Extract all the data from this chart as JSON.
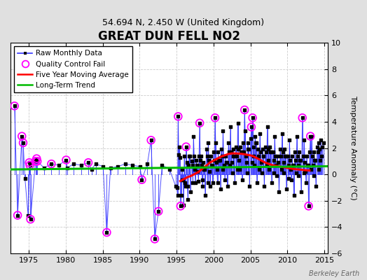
{
  "title": "GREAT DUN FELL NO2",
  "subtitle": "54.694 N, 2.450 W (United Kingdom)",
  "ylabel": "Temperature Anomaly (°C)",
  "attribution": "Berkeley Earth",
  "xlim": [
    1972.5,
    2015.5
  ],
  "ylim": [
    -6,
    10
  ],
  "yticks": [
    -6,
    -4,
    -2,
    0,
    2,
    4,
    6,
    8,
    10
  ],
  "xticks": [
    1975,
    1980,
    1985,
    1990,
    1995,
    2000,
    2005,
    2010,
    2015
  ],
  "background_color": "#e0e0e0",
  "plot_bg_color": "#ffffff",
  "raw_color": "#3333ff",
  "qc_color": "#ff00ff",
  "moving_avg_color": "#ff0000",
  "trend_color": "#00bb00",
  "raw_monthly": [
    [
      1973.04,
      5.2
    ],
    [
      1973.46,
      -3.1
    ],
    [
      1974.04,
      2.9
    ],
    [
      1974.21,
      2.4
    ],
    [
      1974.46,
      -0.3
    ],
    [
      1974.88,
      -3.1
    ],
    [
      1975.04,
      0.9
    ],
    [
      1975.13,
      0.7
    ],
    [
      1975.21,
      -3.4
    ],
    [
      1975.88,
      1.0
    ],
    [
      1976.04,
      1.2
    ],
    [
      1976.13,
      1.0
    ],
    [
      1977.04,
      0.5
    ],
    [
      1978.04,
      0.8
    ],
    [
      1979.04,
      0.7
    ],
    [
      1980.04,
      1.1
    ],
    [
      1980.21,
      0.5
    ],
    [
      1981.04,
      0.8
    ],
    [
      1982.04,
      0.7
    ],
    [
      1983.04,
      0.9
    ],
    [
      1983.46,
      0.4
    ],
    [
      1984.04,
      0.8
    ],
    [
      1985.04,
      0.6
    ],
    [
      1985.54,
      -4.4
    ],
    [
      1986.04,
      0.5
    ],
    [
      1987.04,
      0.6
    ],
    [
      1988.04,
      0.8
    ],
    [
      1989.04,
      0.7
    ],
    [
      1990.04,
      0.6
    ],
    [
      1990.29,
      -0.4
    ],
    [
      1991.04,
      0.8
    ],
    [
      1991.54,
      2.6
    ],
    [
      1992.04,
      -4.9
    ],
    [
      1992.54,
      -2.8
    ],
    [
      1993.04,
      0.7
    ],
    [
      1994.04,
      0.4
    ],
    [
      1994.88,
      -0.9
    ],
    [
      1995.04,
      -1.0
    ],
    [
      1995.13,
      -1.6
    ],
    [
      1995.21,
      4.4
    ],
    [
      1995.29,
      1.5
    ],
    [
      1995.38,
      2.1
    ],
    [
      1995.46,
      1.3
    ],
    [
      1995.54,
      -2.4
    ],
    [
      1995.63,
      -1.6
    ],
    [
      1995.71,
      0.4
    ],
    [
      1995.79,
      -0.4
    ],
    [
      1995.88,
      -0.4
    ],
    [
      1995.96,
      -2.3
    ],
    [
      1996.04,
      1.4
    ],
    [
      1996.13,
      -0.6
    ],
    [
      1996.21,
      -0.9
    ],
    [
      1996.29,
      2.1
    ],
    [
      1996.38,
      0.9
    ],
    [
      1996.46,
      -0.9
    ],
    [
      1996.54,
      -1.9
    ],
    [
      1996.63,
      0.7
    ],
    [
      1996.71,
      1.4
    ],
    [
      1996.79,
      1.4
    ],
    [
      1996.88,
      -1.3
    ],
    [
      1997.04,
      1.0
    ],
    [
      1997.13,
      0.7
    ],
    [
      1997.21,
      -0.6
    ],
    [
      1997.29,
      2.9
    ],
    [
      1997.38,
      1.4
    ],
    [
      1997.46,
      0.4
    ],
    [
      1997.54,
      -0.6
    ],
    [
      1997.63,
      1.1
    ],
    [
      1997.71,
      0.7
    ],
    [
      1997.79,
      0.7
    ],
    [
      1997.88,
      0.2
    ],
    [
      1997.96,
      -0.5
    ],
    [
      1998.04,
      1.4
    ],
    [
      1998.13,
      3.9
    ],
    [
      1998.21,
      1.1
    ],
    [
      1998.29,
      1.4
    ],
    [
      1998.38,
      0.7
    ],
    [
      1998.46,
      -0.4
    ],
    [
      1998.54,
      -0.9
    ],
    [
      1998.63,
      0.9
    ],
    [
      1998.71,
      0.4
    ],
    [
      1998.79,
      0.4
    ],
    [
      1998.88,
      -1.6
    ],
    [
      1999.04,
      1.9
    ],
    [
      1999.13,
      1.4
    ],
    [
      1999.21,
      -0.6
    ],
    [
      1999.29,
      2.4
    ],
    [
      1999.38,
      1.1
    ],
    [
      1999.46,
      0.2
    ],
    [
      1999.54,
      -0.9
    ],
    [
      1999.63,
      1.4
    ],
    [
      1999.71,
      0.7
    ],
    [
      1999.79,
      0.7
    ],
    [
      1999.88,
      -0.6
    ],
    [
      2000.04,
      1.7
    ],
    [
      2000.13,
      1.1
    ],
    [
      2000.21,
      4.3
    ],
    [
      2000.29,
      2.4
    ],
    [
      2000.38,
      0.9
    ],
    [
      2000.46,
      0.4
    ],
    [
      2000.54,
      -0.6
    ],
    [
      2000.63,
      1.7
    ],
    [
      2000.71,
      1.1
    ],
    [
      2000.79,
      1.1
    ],
    [
      2000.88,
      1.1
    ],
    [
      2000.96,
      -1.1
    ],
    [
      2001.04,
      1.9
    ],
    [
      2001.13,
      1.4
    ],
    [
      2001.21,
      0.4
    ],
    [
      2001.29,
      3.3
    ],
    [
      2001.38,
      1.4
    ],
    [
      2001.46,
      0.7
    ],
    [
      2001.54,
      -0.4
    ],
    [
      2001.63,
      1.4
    ],
    [
      2001.71,
      0.9
    ],
    [
      2001.79,
      0.9
    ],
    [
      2001.88,
      -0.9
    ],
    [
      2002.04,
      2.4
    ],
    [
      2002.13,
      1.7
    ],
    [
      2002.21,
      0.7
    ],
    [
      2002.29,
      3.6
    ],
    [
      2002.38,
      1.7
    ],
    [
      2002.46,
      0.9
    ],
    [
      2002.54,
      0.1
    ],
    [
      2002.63,
      1.9
    ],
    [
      2002.71,
      1.4
    ],
    [
      2002.79,
      1.4
    ],
    [
      2002.88,
      -0.6
    ],
    [
      2003.04,
      2.1
    ],
    [
      2003.13,
      1.4
    ],
    [
      2003.21,
      0.4
    ],
    [
      2003.29,
      3.9
    ],
    [
      2003.38,
      1.9
    ],
    [
      2003.46,
      1.1
    ],
    [
      2003.54,
      0.4
    ],
    [
      2003.63,
      2.1
    ],
    [
      2003.71,
      1.7
    ],
    [
      2003.79,
      1.7
    ],
    [
      2003.88,
      -0.4
    ],
    [
      2004.04,
      2.4
    ],
    [
      2004.13,
      1.7
    ],
    [
      2004.21,
      4.9
    ],
    [
      2004.29,
      3.3
    ],
    [
      2004.38,
      1.4
    ],
    [
      2004.46,
      0.9
    ],
    [
      2004.54,
      0.1
    ],
    [
      2004.63,
      2.4
    ],
    [
      2004.71,
      1.9
    ],
    [
      2004.79,
      1.9
    ],
    [
      2004.88,
      -0.9
    ],
    [
      2005.04,
      2.7
    ],
    [
      2005.13,
      3.6
    ],
    [
      2005.21,
      0.9
    ],
    [
      2005.29,
      4.3
    ],
    [
      2005.38,
      2.1
    ],
    [
      2005.46,
      1.4
    ],
    [
      2005.54,
      0.7
    ],
    [
      2005.63,
      2.9
    ],
    [
      2005.71,
      2.4
    ],
    [
      2005.79,
      2.4
    ],
    [
      2005.88,
      -0.6
    ],
    [
      2006.04,
      1.9
    ],
    [
      2006.13,
      1.4
    ],
    [
      2006.21,
      0.4
    ],
    [
      2006.29,
      3.1
    ],
    [
      2006.38,
      1.7
    ],
    [
      2006.46,
      0.9
    ],
    [
      2006.54,
      0.1
    ],
    [
      2006.63,
      1.9
    ],
    [
      2006.71,
      1.4
    ],
    [
      2006.79,
      1.4
    ],
    [
      2006.88,
      -0.9
    ],
    [
      2007.04,
      2.1
    ],
    [
      2007.13,
      1.7
    ],
    [
      2007.21,
      0.7
    ],
    [
      2007.29,
      3.6
    ],
    [
      2007.38,
      1.9
    ],
    [
      2007.46,
      1.1
    ],
    [
      2007.54,
      0.4
    ],
    [
      2007.63,
      2.1
    ],
    [
      2007.71,
      1.7
    ],
    [
      2007.79,
      1.7
    ],
    [
      2007.88,
      -0.6
    ],
    [
      2008.04,
      1.7
    ],
    [
      2008.13,
      1.1
    ],
    [
      2008.21,
      0.1
    ],
    [
      2008.29,
      2.9
    ],
    [
      2008.38,
      1.4
    ],
    [
      2008.46,
      0.7
    ],
    [
      2008.54,
      -0.1
    ],
    [
      2008.63,
      1.4
    ],
    [
      2008.71,
      0.9
    ],
    [
      2008.79,
      0.9
    ],
    [
      2008.88,
      -1.3
    ],
    [
      2009.04,
      1.9
    ],
    [
      2009.13,
      1.4
    ],
    [
      2009.21,
      0.4
    ],
    [
      2009.29,
      3.1
    ],
    [
      2009.38,
      1.7
    ],
    [
      2009.46,
      0.9
    ],
    [
      2009.54,
      0.1
    ],
    [
      2009.63,
      1.9
    ],
    [
      2009.71,
      1.4
    ],
    [
      2009.79,
      1.4
    ],
    [
      2009.88,
      -1.1
    ],
    [
      2010.04,
      1.4
    ],
    [
      2010.13,
      0.7
    ],
    [
      2010.21,
      -0.3
    ],
    [
      2010.29,
      2.6
    ],
    [
      2010.38,
      1.1
    ],
    [
      2010.46,
      0.4
    ],
    [
      2010.54,
      -0.4
    ],
    [
      2010.63,
      1.4
    ],
    [
      2010.71,
      0.7
    ],
    [
      2010.79,
      0.7
    ],
    [
      2010.88,
      -1.6
    ],
    [
      2011.04,
      1.7
    ],
    [
      2011.13,
      1.1
    ],
    [
      2011.21,
      0.1
    ],
    [
      2011.29,
      2.9
    ],
    [
      2011.38,
      1.4
    ],
    [
      2011.46,
      0.7
    ],
    [
      2011.54,
      -0.1
    ],
    [
      2011.63,
      1.7
    ],
    [
      2011.71,
      1.1
    ],
    [
      2011.79,
      1.1
    ],
    [
      2011.88,
      -1.3
    ],
    [
      2012.04,
      4.3
    ],
    [
      2012.13,
      1.4
    ],
    [
      2012.21,
      0.1
    ],
    [
      2012.29,
      2.6
    ],
    [
      2012.38,
      0.9
    ],
    [
      2012.46,
      0.2
    ],
    [
      2012.54,
      -0.6
    ],
    [
      2012.63,
      1.4
    ],
    [
      2012.71,
      0.7
    ],
    [
      2012.79,
      0.7
    ],
    [
      2012.88,
      -2.4
    ],
    [
      2013.04,
      1.7
    ],
    [
      2013.13,
      2.9
    ],
    [
      2013.21,
      0.4
    ],
    [
      2013.29,
      2.9
    ],
    [
      2013.38,
      1.4
    ],
    [
      2013.46,
      0.7
    ],
    [
      2013.54,
      -0.1
    ],
    [
      2013.63,
      1.7
    ],
    [
      2013.71,
      1.1
    ],
    [
      2013.79,
      1.1
    ],
    [
      2013.88,
      -0.9
    ],
    [
      2014.04,
      2.1
    ],
    [
      2014.13,
      1.7
    ],
    [
      2014.21,
      2.4
    ],
    [
      2014.29,
      0.4
    ],
    [
      2014.38,
      1.9
    ],
    [
      2014.46,
      1.1
    ],
    [
      2014.54,
      2.6
    ],
    [
      2014.63,
      1.4
    ],
    [
      2014.71,
      2.1
    ],
    [
      2014.88,
      2.4
    ]
  ],
  "qc_fail_points": [
    [
      1973.04,
      5.2
    ],
    [
      1973.46,
      -3.1
    ],
    [
      1974.04,
      2.9
    ],
    [
      1974.21,
      2.4
    ],
    [
      1975.04,
      0.9
    ],
    [
      1975.13,
      0.7
    ],
    [
      1975.21,
      -3.4
    ],
    [
      1975.88,
      1.0
    ],
    [
      1976.04,
      1.2
    ],
    [
      1976.13,
      1.0
    ],
    [
      1978.04,
      0.8
    ],
    [
      1980.04,
      1.1
    ],
    [
      1983.04,
      0.9
    ],
    [
      1985.54,
      -4.4
    ],
    [
      1990.29,
      -0.4
    ],
    [
      1991.54,
      2.6
    ],
    [
      1992.04,
      -4.9
    ],
    [
      1992.54,
      -2.8
    ],
    [
      1995.21,
      4.4
    ],
    [
      1995.54,
      -2.4
    ],
    [
      1996.29,
      2.1
    ],
    [
      1998.13,
      3.9
    ],
    [
      2000.21,
      4.3
    ],
    [
      2004.21,
      4.9
    ],
    [
      2005.13,
      3.6
    ],
    [
      2005.29,
      4.3
    ],
    [
      2012.04,
      4.3
    ],
    [
      2012.88,
      -2.4
    ],
    [
      2013.13,
      2.9
    ]
  ],
  "moving_avg": [
    [
      1995.5,
      -0.5
    ],
    [
      1996.0,
      -0.35
    ],
    [
      1996.5,
      -0.2
    ],
    [
      1997.0,
      -0.1
    ],
    [
      1997.5,
      0.05
    ],
    [
      1998.0,
      0.2
    ],
    [
      1998.5,
      0.45
    ],
    [
      1999.0,
      0.65
    ],
    [
      1999.5,
      0.9
    ],
    [
      2000.0,
      1.05
    ],
    [
      2000.5,
      1.2
    ],
    [
      2001.0,
      1.35
    ],
    [
      2001.5,
      1.45
    ],
    [
      2002.0,
      1.55
    ],
    [
      2002.5,
      1.6
    ],
    [
      2003.0,
      1.6
    ],
    [
      2003.5,
      1.58
    ],
    [
      2004.0,
      1.55
    ],
    [
      2004.5,
      1.5
    ],
    [
      2005.0,
      1.45
    ],
    [
      2005.5,
      1.35
    ],
    [
      2006.0,
      1.2
    ],
    [
      2006.5,
      1.05
    ],
    [
      2007.0,
      0.9
    ],
    [
      2007.5,
      0.8
    ],
    [
      2008.0,
      0.7
    ],
    [
      2008.5,
      0.65
    ],
    [
      2009.0,
      0.6
    ],
    [
      2009.5,
      0.55
    ],
    [
      2010.0,
      0.5
    ],
    [
      2010.5,
      0.45
    ],
    [
      2011.0,
      0.4
    ],
    [
      2011.5,
      0.38
    ],
    [
      2012.0,
      0.35
    ],
    [
      2012.5,
      0.32
    ],
    [
      2013.0,
      0.3
    ]
  ],
  "trend_x": [
    1972.5,
    2015.5
  ],
  "trend_y": [
    0.38,
    0.62
  ],
  "grid_color": "#cccccc",
  "spine_color": "#000000",
  "tick_color": "#000000",
  "title_fontsize": 12,
  "subtitle_fontsize": 9,
  "axis_fontsize": 8,
  "legend_fontsize": 7.5
}
